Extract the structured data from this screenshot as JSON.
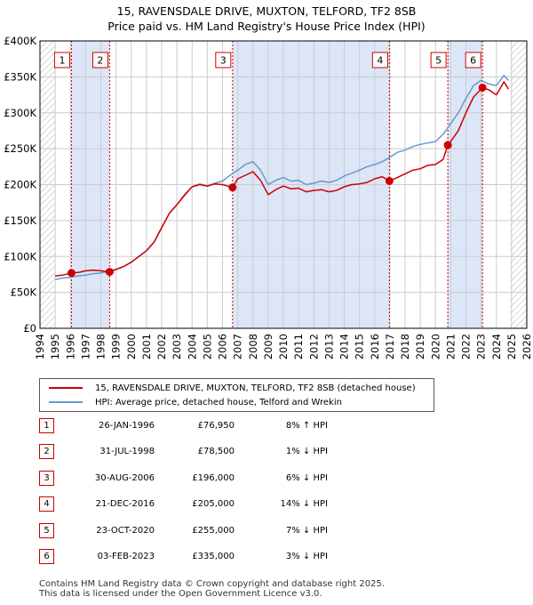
{
  "title_line1": "15, RAVENSDALE DRIVE, MUXTON, TELFORD, TF2 8SB",
  "title_line2": "Price paid vs. HM Land Registry's House Price Index (HPI)",
  "colors": {
    "property": "#cc0000",
    "hpi": "#6699cc",
    "shade": "#dde6f7",
    "grid": "#cccccc"
  },
  "chart_data": {
    "type": "line",
    "xlim": [
      1994,
      2026
    ],
    "ylim": [
      0,
      400000
    ],
    "y_ticks": [
      0,
      50000,
      100000,
      150000,
      200000,
      250000,
      300000,
      350000,
      400000
    ],
    "y_tick_labels": [
      "£0",
      "£50K",
      "£100K",
      "£150K",
      "£200K",
      "£250K",
      "£300K",
      "£350K",
      "£400K"
    ],
    "x_ticks": [
      1994,
      1995,
      1996,
      1997,
      1998,
      1999,
      2000,
      2001,
      2002,
      2003,
      2004,
      2005,
      2006,
      2007,
      2008,
      2009,
      2010,
      2011,
      2012,
      2013,
      2014,
      2015,
      2016,
      2017,
      2018,
      2019,
      2020,
      2021,
      2022,
      2023,
      2024,
      2025,
      2026
    ],
    "x_tick_labels": [
      "1994",
      "1995",
      "1996",
      "1997",
      "1998",
      "1999",
      "2000",
      "2001",
      "2002",
      "2003",
      "2004",
      "2005",
      "2006",
      "2007",
      "2008",
      "2009",
      "2010",
      "2011",
      "2012",
      "2013",
      "2014",
      "2015",
      "2016",
      "2017",
      "2018",
      "2019",
      "2020",
      "2021",
      "2022",
      "2023",
      "2024",
      "2025",
      "2026"
    ],
    "grid": true,
    "shaded_spans": [
      [
        1996.07,
        1998.58
      ],
      [
        2006.66,
        2016.97
      ],
      [
        2020.81,
        2023.09
      ]
    ],
    "hatched_spans": [
      [
        1994,
        1995.0
      ],
      [
        2024.9,
        2026
      ]
    ],
    "series": [
      {
        "name": "15, RAVENSDALE DRIVE, MUXTON, TELFORD, TF2 8SB (detached house)",
        "x": [
          1995.0,
          1995.5,
          1996.07,
          1996.6,
          1997.0,
          1997.5,
          1998.0,
          1998.58,
          1999.0,
          1999.5,
          2000.0,
          2000.5,
          2001.0,
          2001.5,
          2002.0,
          2002.5,
          2003.0,
          2003.5,
          2004.0,
          2004.5,
          2005.0,
          2005.5,
          2006.0,
          2006.66,
          2007.0,
          2007.5,
          2008.0,
          2008.5,
          2009.0,
          2009.5,
          2010.0,
          2010.5,
          2011.0,
          2011.5,
          2012.0,
          2012.5,
          2013.0,
          2013.5,
          2014.0,
          2014.5,
          2015.0,
          2015.5,
          2016.0,
          2016.5,
          2016.97,
          2017.5,
          2018.0,
          2018.5,
          2019.0,
          2019.5,
          2020.0,
          2020.5,
          2020.81,
          2021.0,
          2021.5,
          2022.0,
          2022.5,
          2023.09,
          2023.5,
          2024.0,
          2024.5,
          2024.8
        ],
        "y": [
          73000,
          74000,
          76950,
          78000,
          80000,
          81000,
          80000,
          78500,
          82000,
          86000,
          92000,
          100000,
          108000,
          120000,
          140000,
          160000,
          172000,
          185000,
          197000,
          200000,
          198000,
          201000,
          200000,
          196000,
          208000,
          213000,
          218000,
          206000,
          186000,
          193000,
          198000,
          194000,
          195000,
          190000,
          192000,
          193000,
          190000,
          192000,
          197000,
          200000,
          201000,
          203000,
          208000,
          211000,
          205000,
          210000,
          215000,
          220000,
          222000,
          227000,
          228000,
          235000,
          255000,
          260000,
          275000,
          300000,
          322000,
          335000,
          332000,
          325000,
          343000,
          333000
        ]
      },
      {
        "name": "HPI: Average price, detached house, Telford and Wrekin",
        "x": [
          1995.0,
          1995.5,
          1996.0,
          1996.5,
          1997.0,
          1997.5,
          1998.0,
          1998.5,
          1999.0,
          1999.5,
          2000.0,
          2000.5,
          2001.0,
          2001.5,
          2002.0,
          2002.5,
          2003.0,
          2003.5,
          2004.0,
          2004.5,
          2005.0,
          2005.5,
          2006.0,
          2006.5,
          2007.0,
          2007.5,
          2008.0,
          2008.5,
          2009.0,
          2009.5,
          2010.0,
          2010.5,
          2011.0,
          2011.5,
          2012.0,
          2012.5,
          2013.0,
          2013.5,
          2014.0,
          2014.5,
          2015.0,
          2015.5,
          2016.0,
          2016.5,
          2017.0,
          2017.5,
          2018.0,
          2018.5,
          2019.0,
          2019.5,
          2020.0,
          2020.5,
          2021.0,
          2021.5,
          2022.0,
          2022.5,
          2023.0,
          2023.5,
          2024.0,
          2024.5,
          2024.8
        ],
        "y": [
          68000,
          70000,
          71000,
          73000,
          74000,
          76000,
          77000,
          79000,
          82000,
          86000,
          92000,
          100000,
          108000,
          120000,
          140000,
          160000,
          172000,
          186000,
          197000,
          201000,
          198000,
          202000,
          205000,
          213000,
          220000,
          228000,
          232000,
          220000,
          200000,
          206000,
          210000,
          205000,
          206000,
          200000,
          202000,
          205000,
          203000,
          206000,
          212000,
          216000,
          220000,
          225000,
          228000,
          232000,
          238000,
          245000,
          248000,
          253000,
          256000,
          258000,
          260000,
          270000,
          285000,
          300000,
          320000,
          338000,
          345000,
          340000,
          338000,
          352000,
          345000
        ]
      }
    ],
    "sales": [
      {
        "n": "1",
        "date": "26-JAN-1996",
        "x": 1996.07,
        "price": 76950,
        "price_label": "£76,950",
        "hpi": "8% ↑ HPI"
      },
      {
        "n": "2",
        "date": "31-JUL-1998",
        "x": 1998.58,
        "price": 78500,
        "price_label": "£78,500",
        "hpi": "1% ↓ HPI"
      },
      {
        "n": "3",
        "date": "30-AUG-2006",
        "x": 2006.66,
        "price": 196000,
        "price_label": "£196,000",
        "hpi": "6% ↓ HPI"
      },
      {
        "n": "4",
        "date": "21-DEC-2016",
        "x": 2016.97,
        "price": 205000,
        "price_label": "£205,000",
        "hpi": "14% ↓ HPI"
      },
      {
        "n": "5",
        "date": "23-OCT-2020",
        "x": 2020.81,
        "price": 255000,
        "price_label": "£255,000",
        "hpi": "7% ↓ HPI"
      },
      {
        "n": "6",
        "date": "03-FEB-2023",
        "x": 2023.09,
        "price": 335000,
        "price_label": "£335,000",
        "hpi": "3% ↓ HPI"
      }
    ]
  },
  "footer_line1": "Contains HM Land Registry data © Crown copyright and database right 2025.",
  "footer_line2": "This data is licensed under the Open Government Licence v3.0."
}
